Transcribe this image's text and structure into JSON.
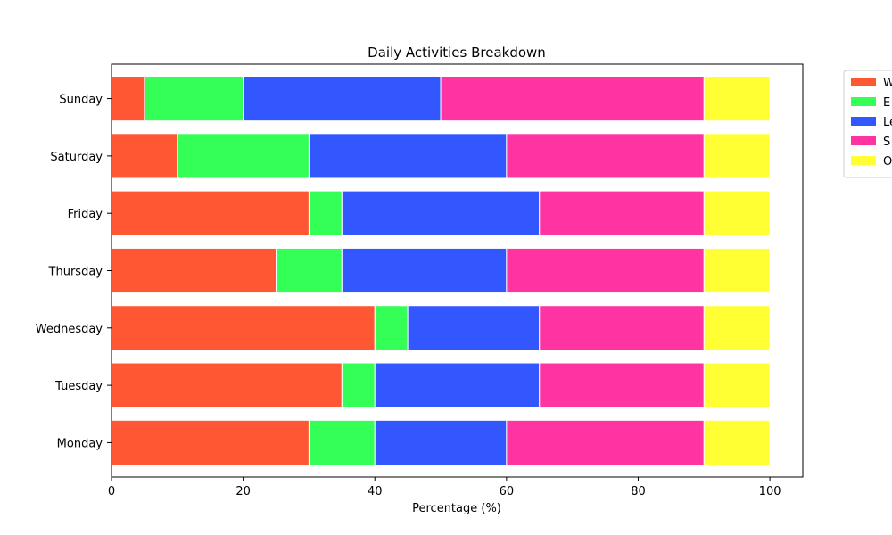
{
  "chart_data": {
    "type": "bar",
    "orientation": "horizontal",
    "stacked": true,
    "title": "Daily Activities Breakdown",
    "xlabel": "Percentage (%)",
    "ylabel": "",
    "xlim": [
      0,
      105
    ],
    "xticks": [
      0,
      20,
      40,
      60,
      80,
      100
    ],
    "grid": false,
    "legend_position": "outside-top-right",
    "categories": [
      "Monday",
      "Tuesday",
      "Wednesday",
      "Thursday",
      "Friday",
      "Saturday",
      "Sunday"
    ],
    "series": [
      {
        "legend_label": "W",
        "color": "#ff5733",
        "values": [
          30,
          35,
          40,
          25,
          30,
          10,
          5
        ]
      },
      {
        "legend_label": "E",
        "color": "#33ff57",
        "values": [
          10,
          5,
          5,
          10,
          5,
          20,
          15
        ]
      },
      {
        "legend_label": "Le",
        "color": "#3357ff",
        "values": [
          20,
          25,
          20,
          25,
          30,
          30,
          30
        ]
      },
      {
        "legend_label": "S",
        "color": "#ff33a1",
        "values": [
          30,
          25,
          25,
          30,
          25,
          30,
          40
        ]
      },
      {
        "legend_label": "O",
        "color": "#ffff33",
        "values": [
          10,
          10,
          10,
          10,
          10,
          10,
          10
        ]
      }
    ]
  }
}
